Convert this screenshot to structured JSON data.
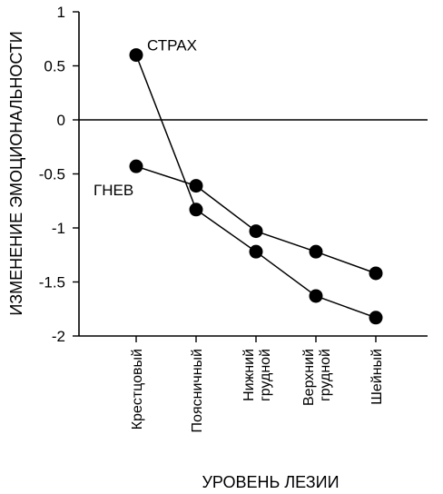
{
  "chart_data": {
    "type": "line",
    "categories": [
      [
        "Крестцовый"
      ],
      [
        "Поясничный"
      ],
      [
        "Нижний",
        "грудной"
      ],
      [
        "Верхний",
        "грудной"
      ],
      [
        "Шейный"
      ]
    ],
    "series": [
      {
        "name": "СТРАХ",
        "values": [
          0.6,
          -0.83,
          -1.22,
          -1.63,
          -1.83
        ]
      },
      {
        "name": "ГНЕВ",
        "values": [
          -0.43,
          -0.61,
          -1.03,
          -1.22,
          -1.42
        ]
      }
    ],
    "xlabel": "УРОВЕНЬ ЛЕЗИИ",
    "ylabel": "ИЗМЕНЕНИЕ ЭМОЦИОНАЛЬНОСТИ",
    "ylim": [
      -2,
      1
    ],
    "yticks": [
      1,
      0.5,
      0,
      -0.5,
      -1,
      -1.5,
      -2
    ],
    "ytick_labels": [
      "1",
      "0.5",
      "0",
      "-0.5",
      "-1",
      "-1.5",
      "-2"
    ],
    "zero_line": true,
    "grid": false,
    "legend": "inline labels next to the first points",
    "colors": {
      "line": "#000000",
      "marker": "#000000"
    }
  }
}
